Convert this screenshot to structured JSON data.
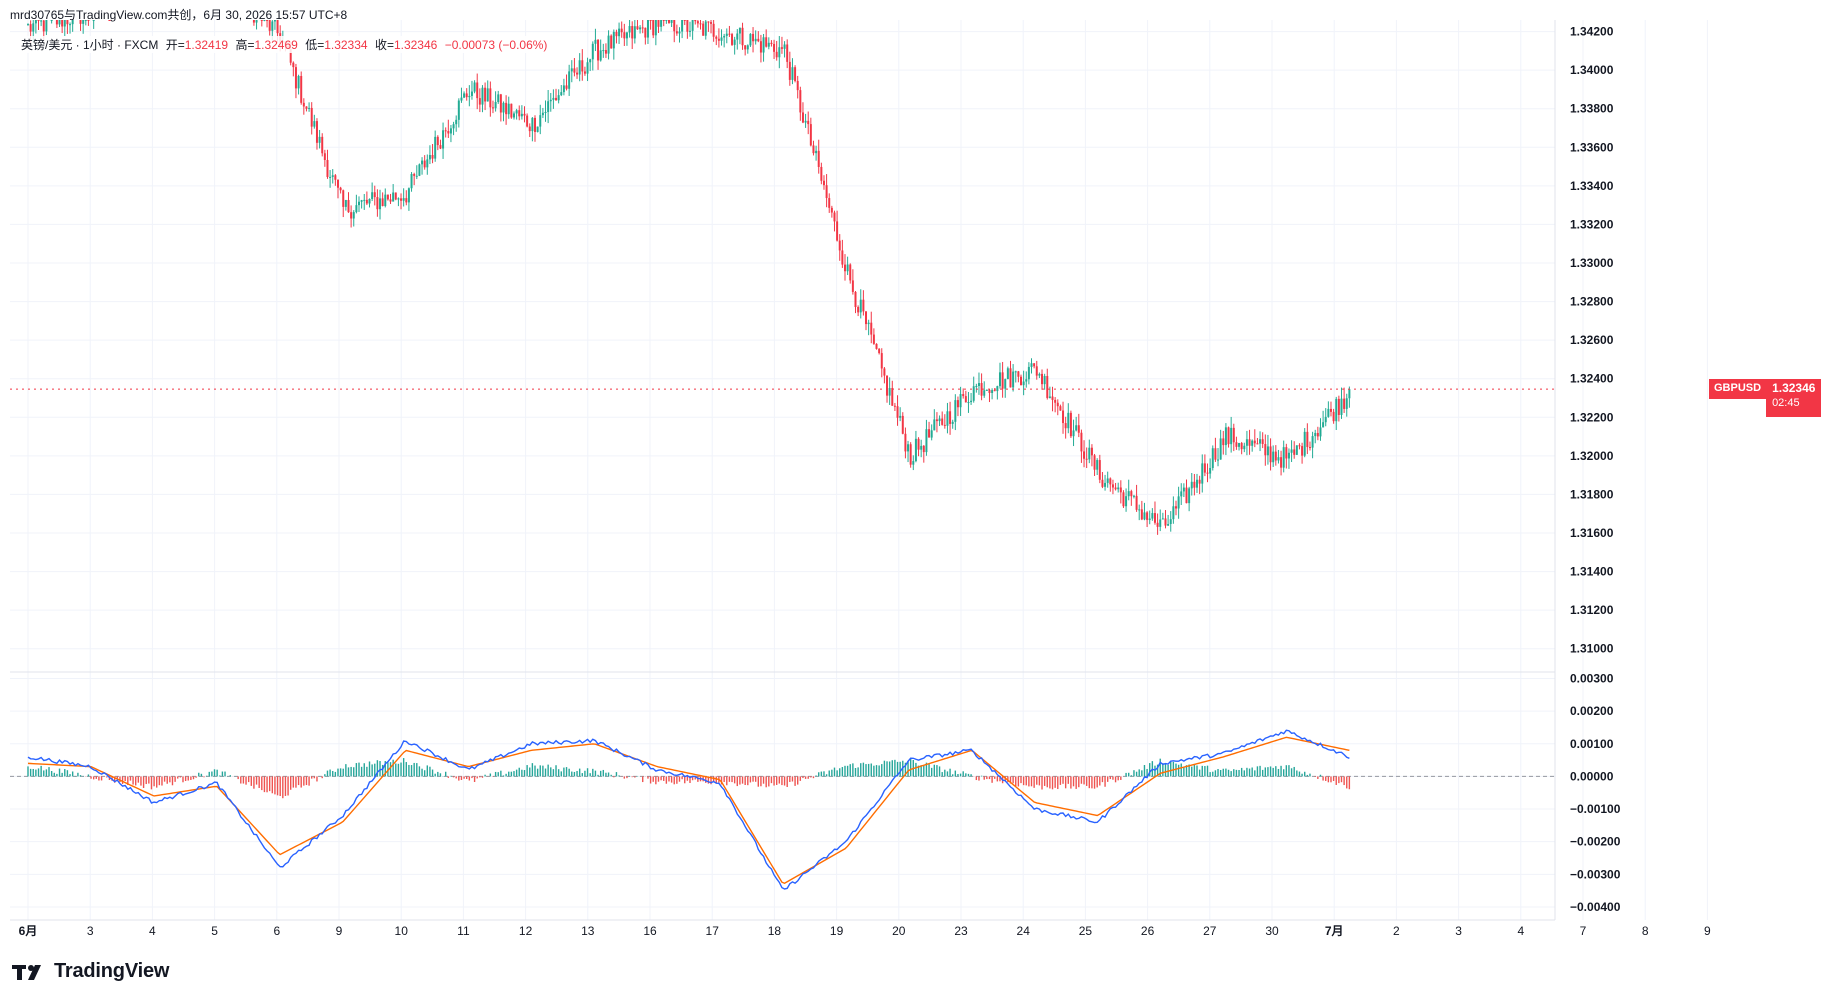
{
  "header": {
    "attribution": "mrd30765与TradingView.com共创，6月 30, 2026 15:57 UTC+8"
  },
  "legend": {
    "symbol_desc": "英镑/美元 · 1小时 · FXCM",
    "open_label": "开=",
    "open_value": "1.32419",
    "high_label": "高=",
    "high_value": "1.32469",
    "low_label": "低=",
    "low_value": "1.32334",
    "close_label": "收=",
    "close_value": "1.32346",
    "change": "−0.00073 (−0.06%)"
  },
  "price_badge": {
    "symbol": "GBPUSD",
    "price": "1.32346",
    "countdown": "02:45"
  },
  "brand": {
    "logo_text": "TradingView"
  },
  "colors": {
    "up": "#22ab94",
    "down": "#f23645",
    "macd_line": "#2962ff",
    "signal_line": "#ff6d00",
    "hist_up": "#26a69a",
    "hist_down": "#ef5350",
    "grid": "#f0f3fa",
    "current_price_line": "#f23645"
  },
  "chart_data": [
    {
      "type": "candlestick",
      "symbol": "GBPUSD",
      "timeframe": "1小时",
      "ylim": [
        1.309,
        1.3426
      ],
      "y_ticks": [
        "1.31000",
        "1.31200",
        "1.31400",
        "1.31600",
        "1.31800",
        "1.32000",
        "1.32200",
        "1.32400",
        "1.32600",
        "1.32800",
        "1.33000",
        "1.33200",
        "1.33400",
        "1.33600",
        "1.33800",
        "1.34000",
        "1.34200"
      ],
      "x_ticks": [
        "6月",
        "3",
        "4",
        "5",
        "6",
        "9",
        "10",
        "11",
        "12",
        "13",
        "16",
        "17",
        "18",
        "19",
        "20",
        "23",
        "24",
        "25",
        "26",
        "27",
        "30",
        "7月",
        "2",
        "3",
        "4",
        "7",
        "8",
        "9"
      ],
      "current_price": 1.32346,
      "close_path_by_session": [
        {
          "session": "6月",
          "start": 1.3422,
          "end": 1.343
        },
        {
          "session": "3",
          "start": 1.343,
          "end": 1.3442
        },
        {
          "session": "4",
          "start": 1.3442,
          "end": 1.3448
        },
        {
          "session": "5",
          "start": 1.3448,
          "end": 1.3418
        },
        {
          "session": "6",
          "start": 1.3418,
          "end": 1.3328
        },
        {
          "session": "9",
          "start": 1.3328,
          "end": 1.3336
        },
        {
          "session": "10",
          "start": 1.3336,
          "end": 1.339
        },
        {
          "session": "11",
          "start": 1.339,
          "end": 1.3372
        },
        {
          "session": "12",
          "start": 1.3372,
          "end": 1.341
        },
        {
          "session": "13",
          "start": 1.341,
          "end": 1.3425
        },
        {
          "session": "16",
          "start": 1.3425,
          "end": 1.342
        },
        {
          "session": "17",
          "start": 1.342,
          "end": 1.341
        },
        {
          "session": "18",
          "start": 1.341,
          "end": 1.3295
        },
        {
          "session": "19",
          "start": 1.3295,
          "end": 1.32
        },
        {
          "session": "20",
          "start": 1.32,
          "end": 1.3235
        },
        {
          "session": "23",
          "start": 1.3235,
          "end": 1.3245
        },
        {
          "session": "24",
          "start": 1.3245,
          "end": 1.319
        },
        {
          "session": "25",
          "start": 1.319,
          "end": 1.3162
        },
        {
          "session": "26",
          "start": 1.3162,
          "end": 1.321
        },
        {
          "session": "27",
          "start": 1.321,
          "end": 1.3198
        },
        {
          "session": "30",
          "start": 1.3198,
          "end": 1.32346
        }
      ]
    },
    {
      "type": "macd",
      "ylim": [
        -0.0044,
        0.0032
      ],
      "y_ticks": [
        "0.00300",
        "0.00200",
        "0.00100",
        "0.00000",
        "−0.00100",
        "−0.00200",
        "−0.00300",
        "−0.00400"
      ],
      "series": [
        {
          "name": "MACD",
          "values_by_session": [
            0.0006,
            0.0003,
            -0.0008,
            -0.0002,
            -0.0028,
            -0.0012,
            0.0011,
            0.0002,
            0.001,
            0.0011,
            0.0002,
            -0.0002,
            -0.0035,
            -0.002,
            0.0005,
            0.0008,
            -0.001,
            -0.0014,
            0.0004,
            0.0007,
            0.0014,
            0.0006
          ]
        },
        {
          "name": "Signal",
          "values_by_session": [
            0.0004,
            0.0003,
            -0.0006,
            -0.0003,
            -0.0024,
            -0.0014,
            0.0008,
            0.0003,
            0.0008,
            0.001,
            0.0003,
            -0.0001,
            -0.0033,
            -0.0022,
            0.0002,
            0.0008,
            -0.0008,
            -0.0012,
            0.0001,
            0.0006,
            0.0012,
            0.0008
          ]
        }
      ]
    }
  ]
}
